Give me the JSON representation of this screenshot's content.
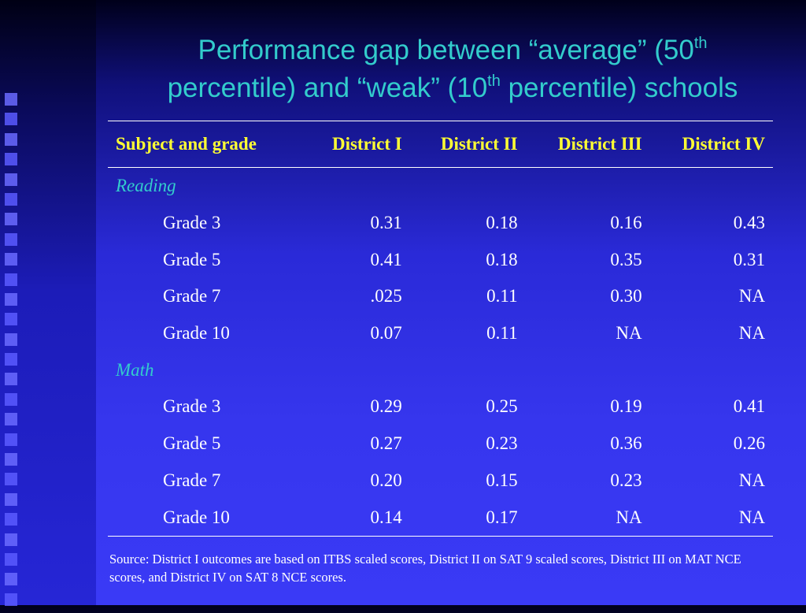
{
  "title": {
    "line1_a": "Performance gap between “average” (50",
    "sup1": "th",
    "line2_a": "percentile) and “weak” (10",
    "sup2": "th",
    "line2_b": " percentile) schools"
  },
  "table": {
    "headers": [
      "Subject and grade",
      "District I",
      "District II",
      "District III",
      "District IV"
    ],
    "sections": [
      {
        "name": "Reading",
        "rows": [
          {
            "grade": "Grade 3",
            "values": [
              "0.31",
              "0.18",
              "0.16",
              "0.43"
            ]
          },
          {
            "grade": "Grade 5",
            "values": [
              "0.41",
              "0.18",
              "0.35",
              "0.31"
            ]
          },
          {
            "grade": "Grade 7",
            "values": [
              ".025",
              "0.11",
              "0.30",
              "NA"
            ]
          },
          {
            "grade": "Grade 10",
            "values": [
              "0.07",
              "0.11",
              "NA",
              "NA"
            ]
          }
        ]
      },
      {
        "name": "Math",
        "rows": [
          {
            "grade": "Grade 3",
            "values": [
              "0.29",
              "0.25",
              "0.19",
              "0.41"
            ]
          },
          {
            "grade": "Grade 5",
            "values": [
              "0.27",
              "0.23",
              "0.36",
              "0.26"
            ]
          },
          {
            "grade": "Grade 7",
            "values": [
              "0.20",
              "0.15",
              "0.23",
              "NA"
            ]
          },
          {
            "grade": "Grade 10",
            "values": [
              "0.14",
              "0.17",
              "NA",
              "NA"
            ]
          }
        ]
      }
    ]
  },
  "source": "Source: District I outcomes are based on ITBS scaled scores, District II on SAT 9 scaled scores, District III on MAT NCE scores, and District IV on SAT 8 NCE scores.",
  "colors": {
    "title": "#33cccc",
    "header": "#ffff33",
    "section": "#33cccc",
    "text": "#ffffff"
  }
}
